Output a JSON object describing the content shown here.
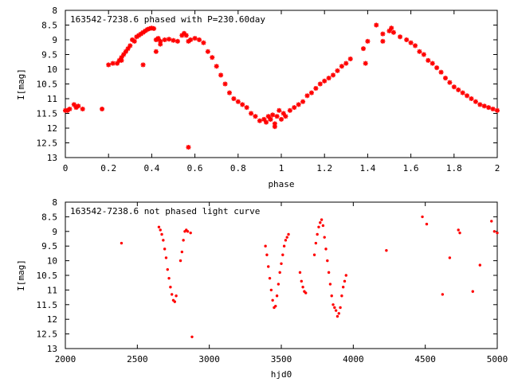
{
  "colors": {
    "points": "#ff0000",
    "axes": "#000000",
    "background": "#ffffff"
  },
  "chart_data": [
    {
      "type": "scatter",
      "title": "163542-7238.6 phased with P=230.60day",
      "xlabel": "phase",
      "ylabel": "I[mag]",
      "xlim": [
        0,
        2
      ],
      "ylim": [
        13,
        8
      ],
      "y_inverted": true,
      "grid": false,
      "marker": "star",
      "x_ticks": [
        "0",
        "0.2",
        "0.4",
        "0.6",
        "0.8",
        "1",
        "1.2",
        "1.4",
        "1.6",
        "1.8",
        "2"
      ],
      "y_ticks": [
        "8",
        "8.5",
        "9",
        "9.5",
        "10",
        "10.5",
        "11",
        "11.5",
        "12",
        "12.5",
        "13"
      ],
      "x": [
        0.0,
        0.01,
        0.02,
        0.04,
        0.05,
        0.06,
        0.08,
        0.2,
        0.22,
        0.24,
        0.25,
        0.26,
        0.27,
        0.28,
        0.29,
        0.3,
        0.31,
        0.32,
        0.33,
        0.34,
        0.35,
        0.36,
        0.37,
        0.38,
        0.39,
        0.4,
        0.41,
        0.42,
        0.43,
        0.44,
        0.46,
        0.48,
        0.5,
        0.52,
        0.54,
        0.55,
        0.56,
        0.57,
        0.58,
        0.6,
        0.62,
        0.64,
        0.66,
        0.68,
        0.7,
        0.72,
        0.74,
        0.76,
        0.78,
        0.8,
        0.82,
        0.84,
        0.86,
        0.88,
        0.9,
        0.92,
        0.93,
        0.94,
        0.95,
        0.96,
        0.97,
        0.98,
        0.99,
        1.0,
        1.01,
        1.02,
        1.04,
        1.06,
        1.08,
        1.1,
        1.12,
        1.14,
        1.16,
        1.18,
        1.2,
        1.22,
        1.24,
        1.26,
        1.28,
        1.3,
        1.32,
        1.38,
        1.4,
        1.44,
        1.47,
        1.5,
        1.51,
        1.52,
        1.55,
        1.58,
        1.6,
        1.62,
        1.64,
        1.66,
        1.68,
        1.7,
        1.72,
        1.74,
        1.76,
        1.78,
        1.8,
        1.82,
        1.84,
        1.86,
        1.88,
        1.9,
        1.92,
        1.94,
        1.96,
        1.98,
        2.0,
        0.17,
        0.42,
        0.57,
        0.44,
        0.26,
        0.36,
        1.39,
        1.47,
        0.97,
        0.95
      ],
      "y": [
        11.4,
        11.4,
        11.35,
        11.2,
        11.3,
        11.25,
        11.35,
        9.85,
        9.8,
        9.8,
        9.7,
        9.6,
        9.5,
        9.4,
        9.3,
        9.2,
        9.0,
        9.05,
        8.9,
        8.85,
        8.8,
        8.75,
        8.7,
        8.65,
        8.62,
        8.6,
        8.62,
        9.0,
        8.95,
        9.05,
        9.0,
        8.98,
        9.02,
        9.05,
        8.85,
        8.78,
        8.85,
        9.05,
        9.0,
        8.95,
        9.0,
        9.1,
        9.4,
        9.6,
        9.9,
        10.2,
        10.5,
        10.8,
        11.0,
        11.1,
        11.2,
        11.3,
        11.5,
        11.6,
        11.75,
        11.7,
        11.8,
        11.6,
        11.7,
        11.55,
        11.85,
        11.6,
        11.4,
        11.7,
        11.5,
        11.6,
        11.4,
        11.3,
        11.2,
        11.1,
        10.9,
        10.8,
        10.65,
        10.5,
        10.4,
        10.3,
        10.2,
        10.05,
        9.9,
        9.8,
        9.65,
        9.3,
        9.05,
        8.5,
        8.8,
        8.7,
        8.6,
        8.75,
        8.9,
        9.0,
        9.1,
        9.2,
        9.4,
        9.5,
        9.7,
        9.8,
        9.95,
        10.1,
        10.3,
        10.45,
        10.6,
        10.7,
        10.8,
        10.9,
        11.0,
        11.1,
        11.2,
        11.25,
        11.3,
        11.35,
        11.4,
        11.35,
        9.4,
        12.65,
        9.15,
        9.7,
        9.85,
        9.8,
        9.05,
        11.95,
        11.7
      ]
    },
    {
      "type": "scatter",
      "title": "163542-7238.6 not phased light curve",
      "xlabel": "hjd0",
      "ylabel": "I[mag]",
      "xlim": [
        2000,
        5000
      ],
      "ylim": [
        13,
        8
      ],
      "y_inverted": true,
      "grid": false,
      "marker": "dot",
      "x_ticks": [
        "2000",
        "2500",
        "3000",
        "3500",
        "4000",
        "4500",
        "5000"
      ],
      "y_ticks": [
        "8",
        "8.5",
        "9",
        "9.5",
        "10",
        "10.5",
        "11",
        "11.5",
        "12",
        "12.5",
        "13"
      ],
      "x": [
        2390,
        2650,
        2660,
        2670,
        2680,
        2690,
        2700,
        2710,
        2720,
        2730,
        2740,
        2750,
        2760,
        2770,
        2800,
        2810,
        2820,
        2830,
        2840,
        2850,
        2870,
        2880,
        3390,
        3400,
        3410,
        3420,
        3430,
        3440,
        3450,
        3460,
        3470,
        3480,
        3490,
        3500,
        3510,
        3520,
        3530,
        3540,
        3550,
        3630,
        3640,
        3650,
        3660,
        3670,
        3730,
        3740,
        3750,
        3760,
        3770,
        3780,
        3790,
        3800,
        3810,
        3820,
        3830,
        3840,
        3850,
        3860,
        3870,
        3880,
        3890,
        3900,
        3910,
        3920,
        3930,
        3940,
        3950,
        4230,
        4480,
        4510,
        4620,
        4670,
        4730,
        4740,
        4830,
        4880,
        4960,
        4980,
        5000
      ],
      "y": [
        9.4,
        8.85,
        8.95,
        9.1,
        9.3,
        9.6,
        9.9,
        10.3,
        10.6,
        10.9,
        11.15,
        11.35,
        11.4,
        11.2,
        10.0,
        9.7,
        9.3,
        9.0,
        8.95,
        9.0,
        9.05,
        12.6,
        9.5,
        9.8,
        10.2,
        10.6,
        11.0,
        11.35,
        11.6,
        11.55,
        11.2,
        10.8,
        10.4,
        10.1,
        9.8,
        9.5,
        9.3,
        9.2,
        9.1,
        10.4,
        10.7,
        10.9,
        11.05,
        11.1,
        9.8,
        9.4,
        9.1,
        8.85,
        8.7,
        8.6,
        8.8,
        9.2,
        9.6,
        10.0,
        10.4,
        10.8,
        11.2,
        11.5,
        11.6,
        11.7,
        11.9,
        11.8,
        11.6,
        11.2,
        10.9,
        10.7,
        10.5,
        9.65,
        8.5,
        8.75,
        11.15,
        9.9,
        8.95,
        9.05,
        11.05,
        10.15,
        8.65,
        9.0,
        9.05
      ]
    }
  ]
}
